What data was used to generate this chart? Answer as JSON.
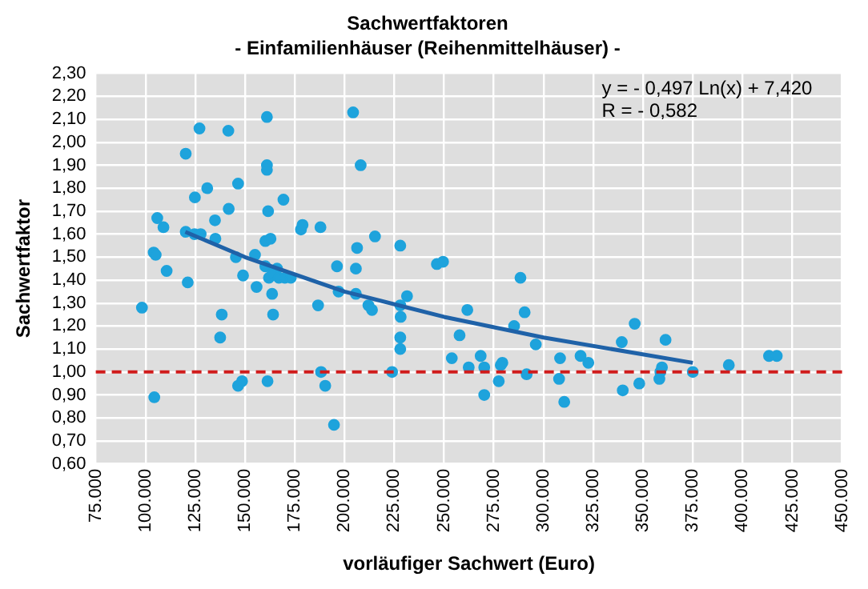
{
  "chart_data": {
    "type": "scatter",
    "title": "Sachwertfaktoren",
    "subtitle": "- Einfamilienhäuser (Reihenmittelhäuser) -",
    "xlabel": "vorläufiger Sachwert (Euro)",
    "ylabel": "Sachwertfaktor",
    "annotations": [
      "y = - 0,497 Ln(x) + 7,420",
      "R = - 0,582"
    ],
    "series": [
      {
        "type": "scatter",
        "color": "#1ea3dc",
        "marker": "circle",
        "x": [
          161000,
          127100,
          141600,
          120200,
          161000,
          161000,
          131000,
          124800,
          146500,
          169300,
          141800,
          161600,
          105900,
          109000,
          134900,
          120200,
          124600,
          127700,
          135100,
          160200,
          162800,
          178100,
          178900,
          187900,
          104100,
          105100,
          145400,
          155000,
          110600,
          149000,
          160200,
          166100,
          162000,
          164000,
          167000,
          170000,
          173000,
          121200,
          155800,
          163600,
          196200,
          197000,
          186700,
          98200,
          164100,
          138300,
          137500,
          188200,
          190300,
          146500,
          148500,
          161300,
          104400,
          194700,
          204300,
          208100,
          215300,
          228000,
          206300,
          205700,
          246400,
          249500,
          288400,
          231400,
          205700,
          212000,
          213800,
          228000,
          261700,
          290500,
          228200,
          285200,
          257800,
          228000,
          296100,
          228000,
          253900,
          268400,
          262400,
          270200,
          279300,
          278500,
          308300,
          318600,
          322500,
          223900,
          291500,
          277500,
          307800,
          270200,
          310400,
          345800,
          339300,
          361300,
          359500,
          358700,
          358200,
          339800,
          348100,
          375000,
          393100,
          413300,
          417200
        ],
        "values": [
          2.11,
          2.06,
          2.05,
          1.95,
          1.9,
          1.88,
          1.8,
          1.76,
          1.82,
          1.75,
          1.71,
          1.7,
          1.67,
          1.63,
          1.66,
          1.61,
          1.6,
          1.6,
          1.58,
          1.57,
          1.58,
          1.62,
          1.64,
          1.63,
          1.52,
          1.51,
          1.5,
          1.51,
          1.44,
          1.42,
          1.46,
          1.45,
          1.41,
          1.43,
          1.41,
          1.41,
          1.41,
          1.39,
          1.37,
          1.34,
          1.46,
          1.35,
          1.29,
          1.28,
          1.25,
          1.25,
          1.15,
          1.0,
          0.94,
          0.94,
          0.96,
          0.96,
          0.89,
          0.77,
          2.13,
          1.9,
          1.59,
          1.55,
          1.54,
          1.45,
          1.47,
          1.48,
          1.41,
          1.33,
          1.34,
          1.29,
          1.27,
          1.29,
          1.27,
          1.26,
          1.24,
          1.2,
          1.16,
          1.15,
          1.12,
          1.1,
          1.06,
          1.07,
          1.02,
          1.02,
          1.04,
          1.03,
          1.06,
          1.07,
          1.04,
          1.0,
          0.99,
          0.96,
          0.97,
          0.9,
          0.87,
          1.21,
          1.13,
          1.14,
          1.02,
          1.0,
          0.97,
          0.92,
          0.95,
          1.0,
          1.03,
          1.07,
          1.07
        ]
      },
      {
        "type": "line",
        "color": "#1f62a8",
        "marker": "none",
        "line_style": "solid",
        "x": [
          120000,
          150000,
          200000,
          250000,
          300000,
          375000
        ],
        "values": [
          1.61,
          1.5,
          1.35,
          1.24,
          1.15,
          1.04
        ]
      }
    ],
    "xlim": [
      75000,
      450000
    ],
    "xticks": [
      {
        "value": 75000,
        "label": "75.000"
      },
      {
        "value": 100000,
        "label": "100.000"
      },
      {
        "value": 125000,
        "label": "125.000"
      },
      {
        "value": 150000,
        "label": "150.000"
      },
      {
        "value": 175000,
        "label": "175.000"
      },
      {
        "value": 200000,
        "label": "200.000"
      },
      {
        "value": 225000,
        "label": "225.000"
      },
      {
        "value": 250000,
        "label": "250.000"
      },
      {
        "value": 275000,
        "label": "275.000"
      },
      {
        "value": 300000,
        "label": "300.000"
      },
      {
        "value": 325000,
        "label": "325.000"
      },
      {
        "value": 350000,
        "label": "350.000"
      },
      {
        "value": 375000,
        "label": "375.000"
      },
      {
        "value": 400000,
        "label": "400.000"
      },
      {
        "value": 425000,
        "label": "425.000"
      },
      {
        "value": 450000,
        "label": "450.000"
      }
    ],
    "ylim": [
      0.6,
      2.3
    ],
    "yticks": [
      {
        "value": 0.6,
        "label": "0,60"
      },
      {
        "value": 0.7,
        "label": "0,70"
      },
      {
        "value": 0.8,
        "label": "0,80"
      },
      {
        "value": 0.9,
        "label": "0,90"
      },
      {
        "value": 1.0,
        "label": "1,00"
      },
      {
        "value": 1.1,
        "label": "1,10"
      },
      {
        "value": 1.2,
        "label": "1,20"
      },
      {
        "value": 1.3,
        "label": "1,30"
      },
      {
        "value": 1.4,
        "label": "1,40"
      },
      {
        "value": 1.5,
        "label": "1,50"
      },
      {
        "value": 1.6,
        "label": "1,60"
      },
      {
        "value": 1.7,
        "label": "1,70"
      },
      {
        "value": 1.8,
        "label": "1,80"
      },
      {
        "value": 1.9,
        "label": "1,90"
      },
      {
        "value": 2.0,
        "label": "2,00"
      },
      {
        "value": 2.1,
        "label": "2,10"
      },
      {
        "value": 2.2,
        "label": "2,20"
      },
      {
        "value": 2.3,
        "label": "2,30"
      }
    ],
    "ref_lines": [
      {
        "axis": "y",
        "value": 1.0,
        "color": "#d01c1c",
        "line_style": "dashed"
      }
    ],
    "grid": true,
    "legend": false
  }
}
